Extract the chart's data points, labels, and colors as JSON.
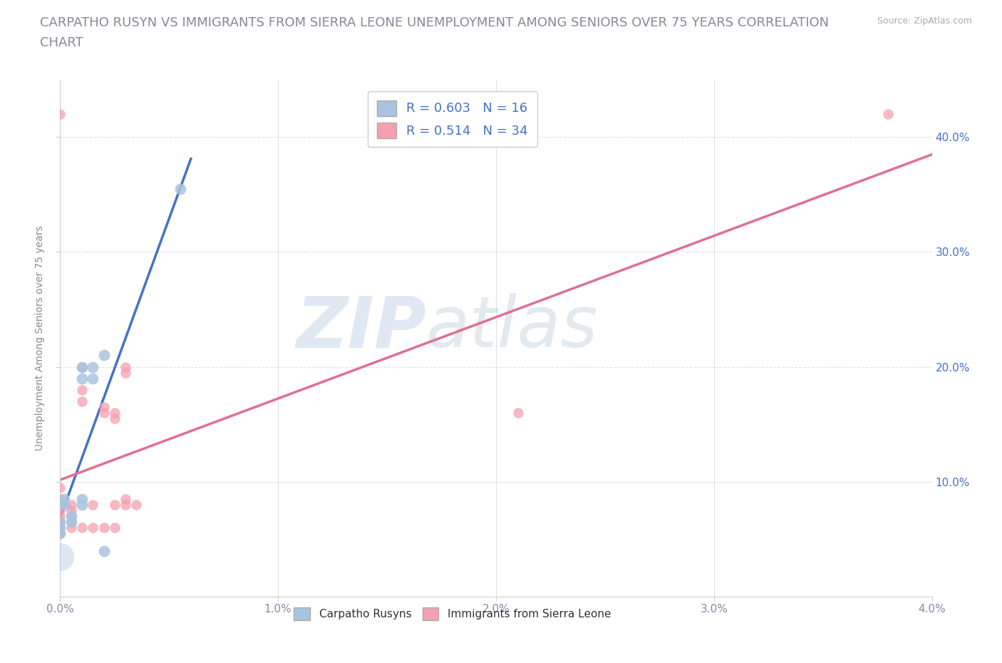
{
  "title_line1": "CARPATHO RUSYN VS IMMIGRANTS FROM SIERRA LEONE UNEMPLOYMENT AMONG SENIORS OVER 75 YEARS CORRELATION",
  "title_line2": "CHART",
  "source_text": "Source: ZipAtlas.com",
  "ylabel": "Unemployment Among Seniors over 75 years",
  "xlim": [
    0.0,
    0.04
  ],
  "ylim": [
    0.0,
    0.45
  ],
  "xtick_labels": [
    "0.0%",
    "1.0%",
    "2.0%",
    "3.0%",
    "4.0%"
  ],
  "xtick_vals": [
    0.0,
    0.01,
    0.02,
    0.03,
    0.04
  ],
  "ytick_labels": [
    "10.0%",
    "20.0%",
    "30.0%",
    "40.0%"
  ],
  "ytick_vals": [
    0.1,
    0.2,
    0.3,
    0.4
  ],
  "background_color": "#ffffff",
  "legend_r1": "R = 0.603",
  "legend_n1": "N = 16",
  "legend_r2": "R = 0.514",
  "legend_n2": "N = 34",
  "color_blue": "#a8c4e0",
  "color_pink": "#f4a0b0",
  "trendline_blue_color": "#4472c4",
  "trendline_pink_color": "#e07090",
  "tick_color_right": "#4472c4",
  "tick_color_bottom": "#8888aa",
  "scatter_blue": [
    [
      0.0,
      0.055
    ],
    [
      0.0,
      0.06
    ],
    [
      0.0,
      0.065
    ],
    [
      0.0002,
      0.08
    ],
    [
      0.0002,
      0.085
    ],
    [
      0.0005,
      0.065
    ],
    [
      0.0005,
      0.07
    ],
    [
      0.001,
      0.08
    ],
    [
      0.001,
      0.085
    ],
    [
      0.001,
      0.19
    ],
    [
      0.001,
      0.2
    ],
    [
      0.0015,
      0.19
    ],
    [
      0.0015,
      0.2
    ],
    [
      0.002,
      0.21
    ],
    [
      0.002,
      0.04
    ],
    [
      0.0055,
      0.355
    ]
  ],
  "scatter_pink": [
    [
      0.0,
      0.055
    ],
    [
      0.0,
      0.06
    ],
    [
      0.0,
      0.065
    ],
    [
      0.0,
      0.07
    ],
    [
      0.0,
      0.075
    ],
    [
      0.0,
      0.08
    ],
    [
      0.0,
      0.085
    ],
    [
      0.0,
      0.095
    ],
    [
      0.0,
      0.42
    ],
    [
      0.0005,
      0.06
    ],
    [
      0.0005,
      0.065
    ],
    [
      0.0005,
      0.07
    ],
    [
      0.0005,
      0.075
    ],
    [
      0.0005,
      0.08
    ],
    [
      0.001,
      0.06
    ],
    [
      0.001,
      0.17
    ],
    [
      0.001,
      0.18
    ],
    [
      0.001,
      0.2
    ],
    [
      0.0015,
      0.06
    ],
    [
      0.0015,
      0.08
    ],
    [
      0.002,
      0.06
    ],
    [
      0.002,
      0.16
    ],
    [
      0.002,
      0.165
    ],
    [
      0.0025,
      0.06
    ],
    [
      0.0025,
      0.08
    ],
    [
      0.0025,
      0.155
    ],
    [
      0.0025,
      0.16
    ],
    [
      0.003,
      0.08
    ],
    [
      0.003,
      0.085
    ],
    [
      0.003,
      0.195
    ],
    [
      0.003,
      0.2
    ],
    [
      0.0035,
      0.08
    ],
    [
      0.021,
      0.16
    ],
    [
      0.038,
      0.42
    ]
  ],
  "grid_color": "#e0e0e0",
  "title_fontsize": 13,
  "axis_label_fontsize": 10,
  "tick_fontsize": 11,
  "legend_fontsize": 13,
  "watermark_zip": "ZIP",
  "watermark_atlas": "atlas"
}
